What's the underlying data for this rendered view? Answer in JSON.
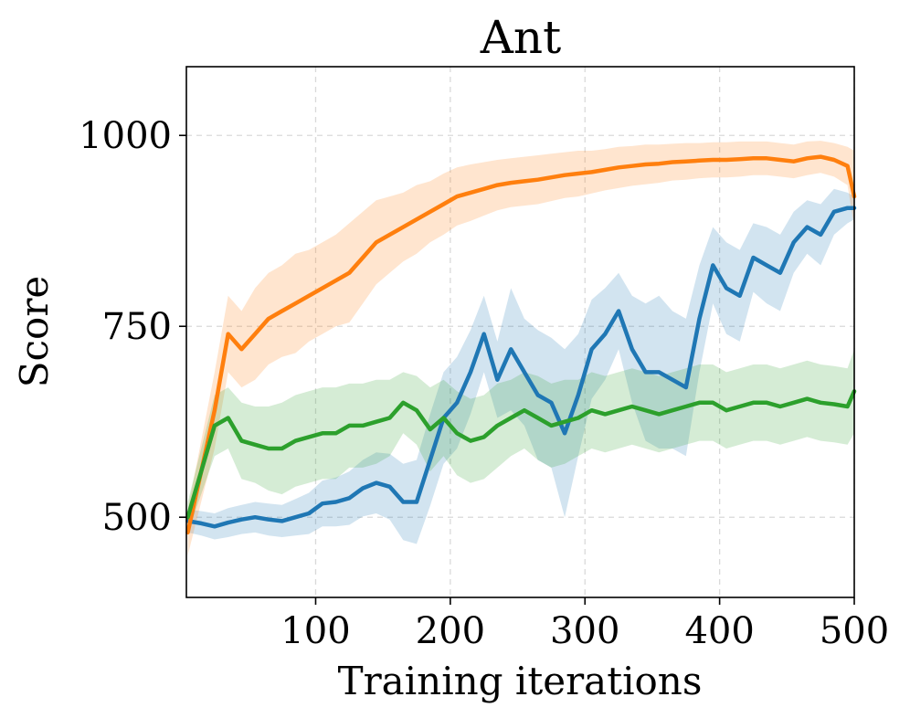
{
  "chart_data": {
    "type": "line",
    "title": "Ant",
    "xlabel": "Training iterations",
    "ylabel": "Score",
    "xlim": [
      4,
      500
    ],
    "ylim": [
      395,
      1090
    ],
    "xticks": [
      100,
      200,
      300,
      400,
      500
    ],
    "yticks": [
      500,
      750,
      1000
    ],
    "grid": true,
    "legend": "none",
    "x": [
      5,
      15,
      25,
      35,
      45,
      55,
      65,
      75,
      85,
      95,
      105,
      115,
      125,
      135,
      145,
      155,
      165,
      175,
      185,
      195,
      205,
      215,
      225,
      235,
      245,
      255,
      265,
      275,
      285,
      295,
      305,
      315,
      325,
      335,
      345,
      355,
      365,
      375,
      385,
      395,
      405,
      415,
      425,
      435,
      445,
      455,
      465,
      475,
      485,
      495,
      500
    ],
    "series": [
      {
        "name": "blue",
        "color": "#1f77b4",
        "values": [
          495,
          492,
          488,
          493,
          497,
          500,
          497,
          495,
          500,
          505,
          518,
          520,
          525,
          538,
          545,
          540,
          520,
          520,
          575,
          630,
          650,
          690,
          740,
          680,
          720,
          690,
          660,
          650,
          610,
          660,
          720,
          740,
          770,
          720,
          690,
          690,
          680,
          670,
          760,
          830,
          800,
          790,
          840,
          830,
          820,
          860,
          880,
          870,
          900,
          905,
          905
        ],
        "upper": [
          510,
          508,
          505,
          512,
          516,
          520,
          518,
          516,
          524,
          532,
          548,
          552,
          560,
          575,
          585,
          583,
          570,
          575,
          635,
          690,
          710,
          745,
          790,
          730,
          800,
          760,
          745,
          735,
          720,
          740,
          785,
          800,
          820,
          790,
          780,
          790,
          770,
          760,
          830,
          880,
          860,
          850,
          885,
          880,
          870,
          900,
          915,
          910,
          930,
          925,
          920
        ],
        "lower": [
          480,
          476,
          471,
          474,
          478,
          480,
          476,
          474,
          476,
          478,
          488,
          488,
          490,
          501,
          505,
          497,
          470,
          465,
          515,
          570,
          590,
          635,
          690,
          630,
          640,
          620,
          575,
          565,
          500,
          580,
          655,
          680,
          720,
          650,
          600,
          590,
          590,
          580,
          690,
          780,
          740,
          730,
          795,
          780,
          770,
          820,
          845,
          830,
          870,
          885,
          890
        ]
      },
      {
        "name": "orange",
        "color": "#ff7f0e",
        "values": [
          480,
          560,
          640,
          740,
          720,
          740,
          760,
          770,
          780,
          790,
          800,
          810,
          820,
          840,
          860,
          870,
          880,
          890,
          900,
          910,
          920,
          925,
          930,
          935,
          938,
          940,
          942,
          945,
          948,
          950,
          952,
          955,
          958,
          960,
          962,
          963,
          965,
          966,
          967,
          968,
          968,
          969,
          970,
          970,
          968,
          966,
          970,
          972,
          968,
          960,
          920
        ],
        "upper": [
          510,
          600,
          690,
          790,
          770,
          800,
          820,
          830,
          845,
          850,
          860,
          870,
          885,
          900,
          915,
          920,
          925,
          935,
          940,
          950,
          958,
          962,
          965,
          968,
          970,
          972,
          974,
          976,
          978,
          980,
          980,
          982,
          985,
          986,
          988,
          988,
          989,
          990,
          990,
          991,
          991,
          992,
          992,
          992,
          990,
          988,
          992,
          993,
          990,
          985,
          980
        ],
        "lower": [
          450,
          520,
          590,
          690,
          670,
          680,
          700,
          710,
          715,
          730,
          740,
          750,
          755,
          780,
          805,
          820,
          835,
          845,
          860,
          870,
          882,
          888,
          895,
          902,
          906,
          908,
          910,
          914,
          918,
          920,
          924,
          928,
          931,
          934,
          936,
          938,
          941,
          942,
          944,
          945,
          945,
          946,
          948,
          948,
          946,
          944,
          948,
          951,
          946,
          935,
          880
        ]
      },
      {
        "name": "green",
        "color": "#2ca02c",
        "values": [
          500,
          560,
          620,
          630,
          600,
          595,
          590,
          590,
          600,
          605,
          610,
          610,
          620,
          620,
          625,
          630,
          650,
          640,
          615,
          630,
          610,
          600,
          605,
          620,
          630,
          640,
          630,
          620,
          625,
          630,
          640,
          635,
          640,
          645,
          640,
          635,
          640,
          645,
          650,
          650,
          640,
          645,
          650,
          650,
          645,
          650,
          655,
          650,
          648,
          645,
          665
        ],
        "upper": [
          520,
          590,
          660,
          670,
          650,
          645,
          645,
          650,
          660,
          665,
          670,
          670,
          675,
          675,
          680,
          680,
          690,
          685,
          670,
          680,
          665,
          655,
          660,
          675,
          680,
          690,
          685,
          675,
          680,
          680,
          690,
          685,
          690,
          695,
          690,
          685,
          690,
          695,
          700,
          700,
          690,
          695,
          700,
          700,
          695,
          700,
          705,
          700,
          698,
          695,
          720
        ],
        "lower": [
          480,
          530,
          580,
          590,
          550,
          545,
          535,
          530,
          540,
          545,
          550,
          550,
          565,
          565,
          570,
          580,
          610,
          595,
          560,
          580,
          555,
          545,
          550,
          565,
          580,
          590,
          575,
          565,
          570,
          580,
          590,
          585,
          590,
          595,
          590,
          585,
          590,
          595,
          600,
          600,
          590,
          595,
          600,
          600,
          595,
          600,
          605,
          600,
          598,
          595,
          610
        ]
      }
    ]
  }
}
